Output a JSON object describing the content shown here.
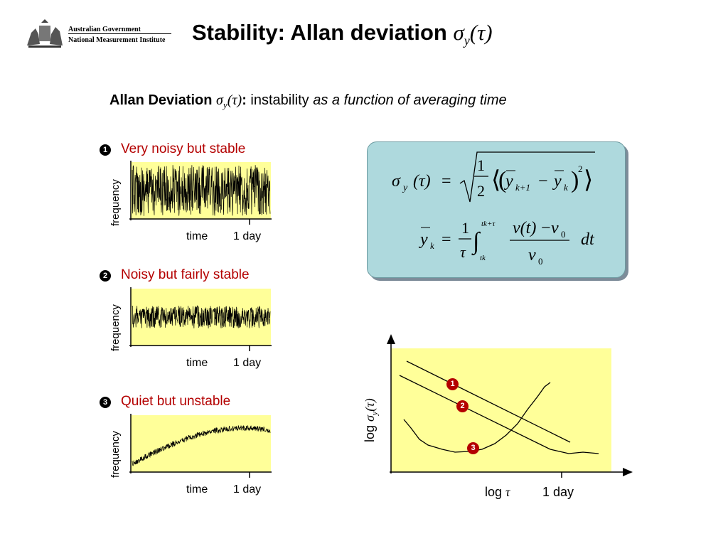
{
  "header": {
    "logo_line1": "Australian Government",
    "logo_line2": "National Measurement Institute",
    "title_text": "Stability: Allan deviation",
    "title_symbol": "σ",
    "title_sub": "y",
    "title_arg": "(τ)"
  },
  "subtitle": {
    "bold": "Allan Deviation",
    "symbol": "σ",
    "sub": "y",
    "arg": "(τ)",
    "colon": ":",
    "plain": "instability",
    "italic": "as a function of averaging time"
  },
  "panels": [
    {
      "number": "1",
      "label": "Very noisy but stable",
      "ylabel": "frequency",
      "xlabel": "time",
      "tick": "1 day"
    },
    {
      "number": "2",
      "label": "Noisy but fairly stable",
      "ylabel": "frequency",
      "xlabel": "time",
      "tick": "1 day"
    },
    {
      "number": "3",
      "label": "Quiet but unstable",
      "ylabel": "frequency",
      "xlabel": "time",
      "tick": "1 day"
    }
  ],
  "formula": {
    "sigma": "σ",
    "y_sub": "y",
    "tau_arg": "(τ)",
    "equals": "=",
    "half_num": "1",
    "half_den": "2",
    "ybar": "y",
    "k_plus_1": "k+1",
    "minus": "−",
    "k": "k",
    "square": "2",
    "one": "1",
    "tau": "τ",
    "upper_limit": "tk+τ",
    "lower_limit": "tk",
    "nu_t": "ν(t)",
    "nu": "ν",
    "zero": "0",
    "dt": "dt"
  },
  "summary_chart": {
    "ylabel_prefix": "log",
    "ylabel_symbol": "σ",
    "ylabel_sub": "y",
    "ylabel_arg": "(τ)",
    "xlabel_prefix": "log",
    "xlabel_symbol": "τ",
    "tick": "1 day",
    "badges": [
      "1",
      "2",
      "3"
    ]
  },
  "colors": {
    "plot_fill": "#ffff99",
    "formula_box": "#aed9dd",
    "label_red": "#b40000"
  }
}
